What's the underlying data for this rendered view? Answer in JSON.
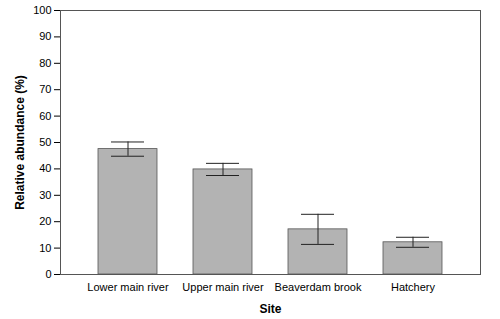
{
  "chart_data": {
    "type": "bar",
    "x_label": "Site",
    "y_label": "Relative abundance (%)",
    "categories": [
      "Lower main river",
      "Upper main river",
      "Beaverdam brook",
      "Hatchery"
    ],
    "values": [
      47.5,
      39.8,
      17.1,
      12.2
    ],
    "errors": [
      2.7,
      2.3,
      5.7,
      1.9
    ],
    "color": "#b3b3b3",
    "ylim": [
      0,
      100
    ],
    "yticks": [
      0,
      10,
      20,
      30,
      40,
      50,
      60,
      70,
      80,
      90,
      100
    ],
    "grid": false
  }
}
